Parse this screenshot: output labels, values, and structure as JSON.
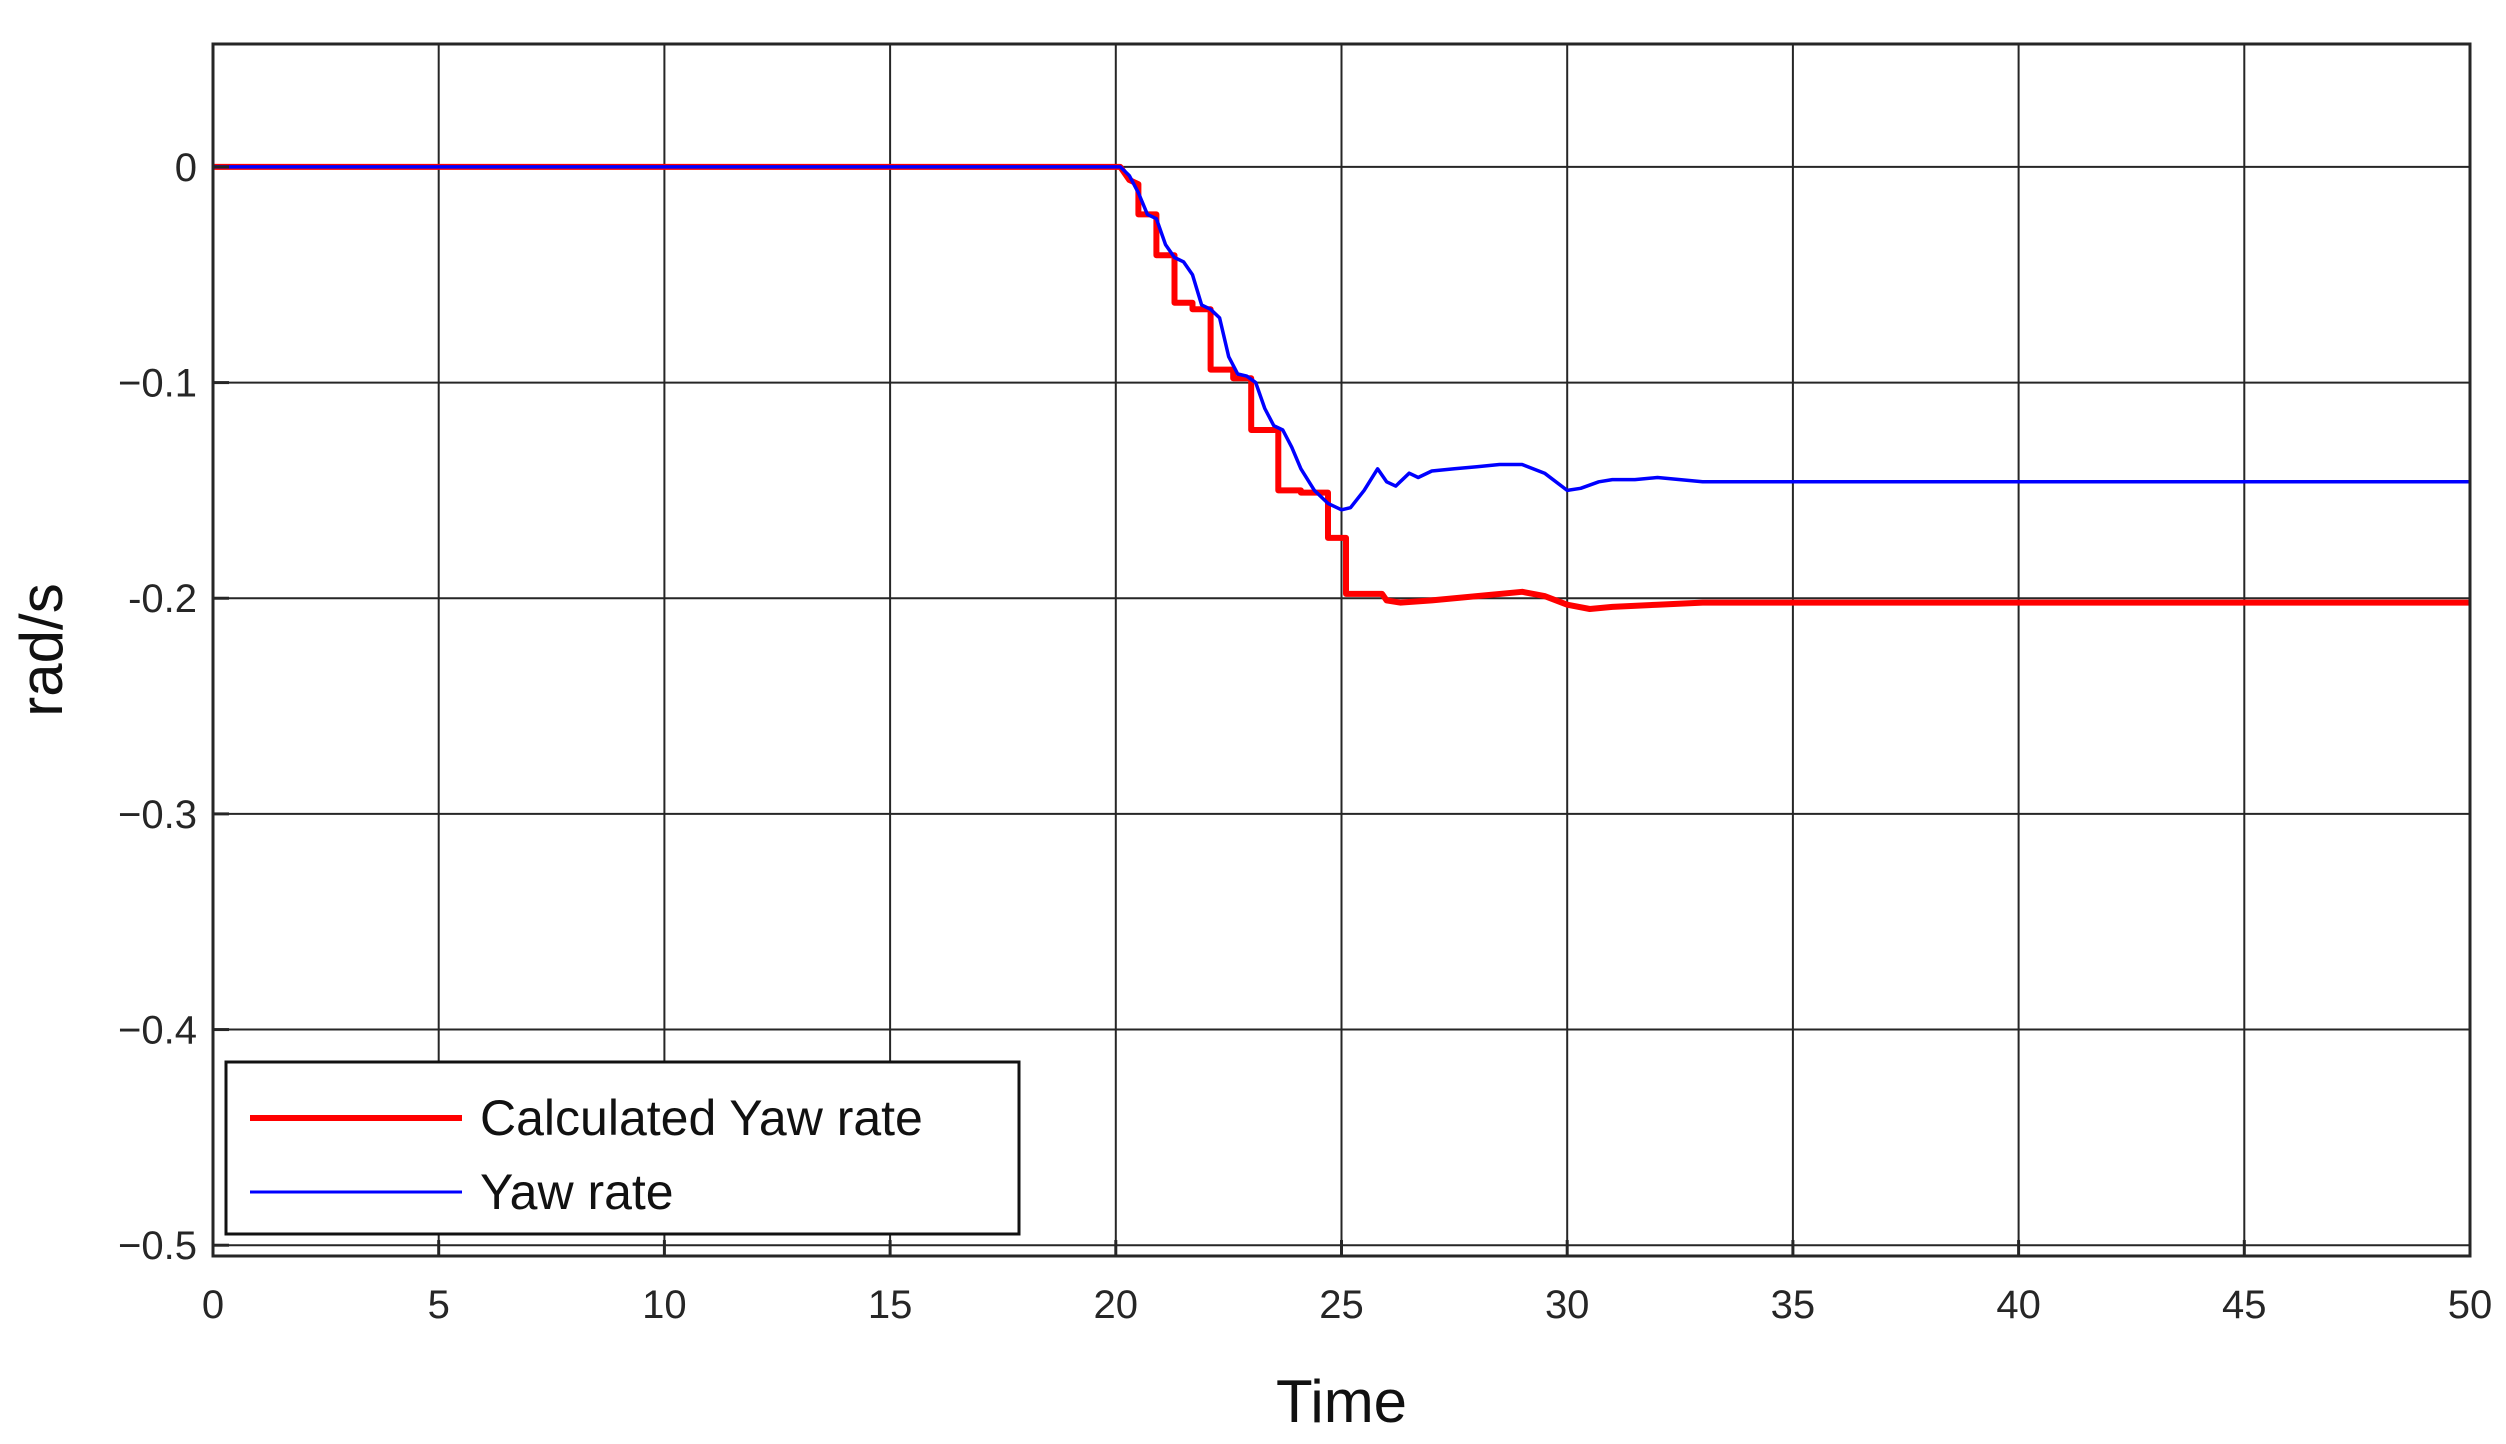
{
  "chart_data": {
    "type": "line",
    "title": "",
    "xlabel": "Time",
    "ylabel": "rad/s",
    "xlim": [
      0,
      50
    ],
    "ylim": [
      -0.505,
      0.057
    ],
    "xticks": [
      0,
      5,
      10,
      15,
      20,
      25,
      30,
      35,
      40,
      45,
      50
    ],
    "yticks": [
      0,
      -0.1,
      -0.2,
      -0.3,
      -0.4,
      -0.5
    ],
    "xtick_labels": [
      "0",
      "5",
      "10",
      "15",
      "20",
      "25",
      "30",
      "35",
      "40",
      "45",
      "50"
    ],
    "ytick_labels": [
      "0",
      "−0.1",
      "-0.2",
      "−0.3",
      "−0.4",
      "−0.5"
    ],
    "grid": true,
    "legend_position": "bottom-left",
    "series": [
      {
        "name": "Calculated Yaw rate",
        "color": "#ff0000",
        "x": [
          0,
          20.1,
          20.3,
          20.5,
          20.5,
          20.9,
          20.9,
          21.3,
          21.3,
          21.7,
          21.7,
          22.1,
          22.1,
          22.6,
          22.6,
          23.0,
          23.0,
          23.6,
          23.6,
          24.1,
          24.1,
          24.7,
          24.7,
          25.1,
          25.1,
          25.9,
          26.0,
          26.3,
          27.0,
          28.0,
          29.0,
          29.5,
          30.0,
          30.5,
          31.0,
          32.0,
          33.0,
          35.0,
          40.0,
          45.0,
          50.0
        ],
        "y": [
          0,
          0,
          -0.006,
          -0.008,
          -0.022,
          -0.022,
          -0.041,
          -0.041,
          -0.063,
          -0.063,
          -0.066,
          -0.066,
          -0.094,
          -0.094,
          -0.098,
          -0.098,
          -0.122,
          -0.122,
          -0.15,
          -0.15,
          -0.151,
          -0.151,
          -0.172,
          -0.172,
          -0.198,
          -0.198,
          -0.201,
          -0.202,
          -0.201,
          -0.199,
          -0.197,
          -0.199,
          -0.203,
          -0.205,
          -0.204,
          -0.203,
          -0.202,
          -0.202,
          -0.202,
          -0.202,
          -0.202
        ]
      },
      {
        "name": "Yaw rate",
        "color": "#0000ff",
        "x": [
          0,
          20.1,
          20.3,
          20.5,
          20.7,
          20.9,
          21.1,
          21.3,
          21.5,
          21.7,
          21.9,
          22.1,
          22.3,
          22.5,
          22.7,
          22.9,
          23.1,
          23.3,
          23.5,
          23.7,
          23.9,
          24.1,
          24.4,
          24.7,
          25.0,
          25.2,
          25.5,
          25.8,
          26.0,
          26.2,
          26.5,
          26.7,
          27.0,
          27.5,
          28.0,
          28.5,
          29.0,
          29.5,
          30.0,
          30.3,
          30.7,
          31.0,
          31.5,
          32.0,
          32.5,
          33.0,
          35.0,
          40.0,
          45.0,
          50.0
        ],
        "y": [
          0,
          0,
          -0.004,
          -0.012,
          -0.022,
          -0.024,
          -0.036,
          -0.042,
          -0.044,
          -0.05,
          -0.064,
          -0.066,
          -0.07,
          -0.088,
          -0.096,
          -0.097,
          -0.1,
          -0.112,
          -0.12,
          -0.122,
          -0.13,
          -0.14,
          -0.15,
          -0.156,
          -0.159,
          -0.158,
          -0.15,
          -0.14,
          -0.146,
          -0.148,
          -0.142,
          -0.144,
          -0.141,
          -0.14,
          -0.139,
          -0.138,
          -0.138,
          -0.142,
          -0.15,
          -0.149,
          -0.146,
          -0.145,
          -0.145,
          -0.144,
          -0.145,
          -0.146,
          -0.146,
          -0.146,
          -0.146,
          -0.146
        ]
      }
    ]
  }
}
